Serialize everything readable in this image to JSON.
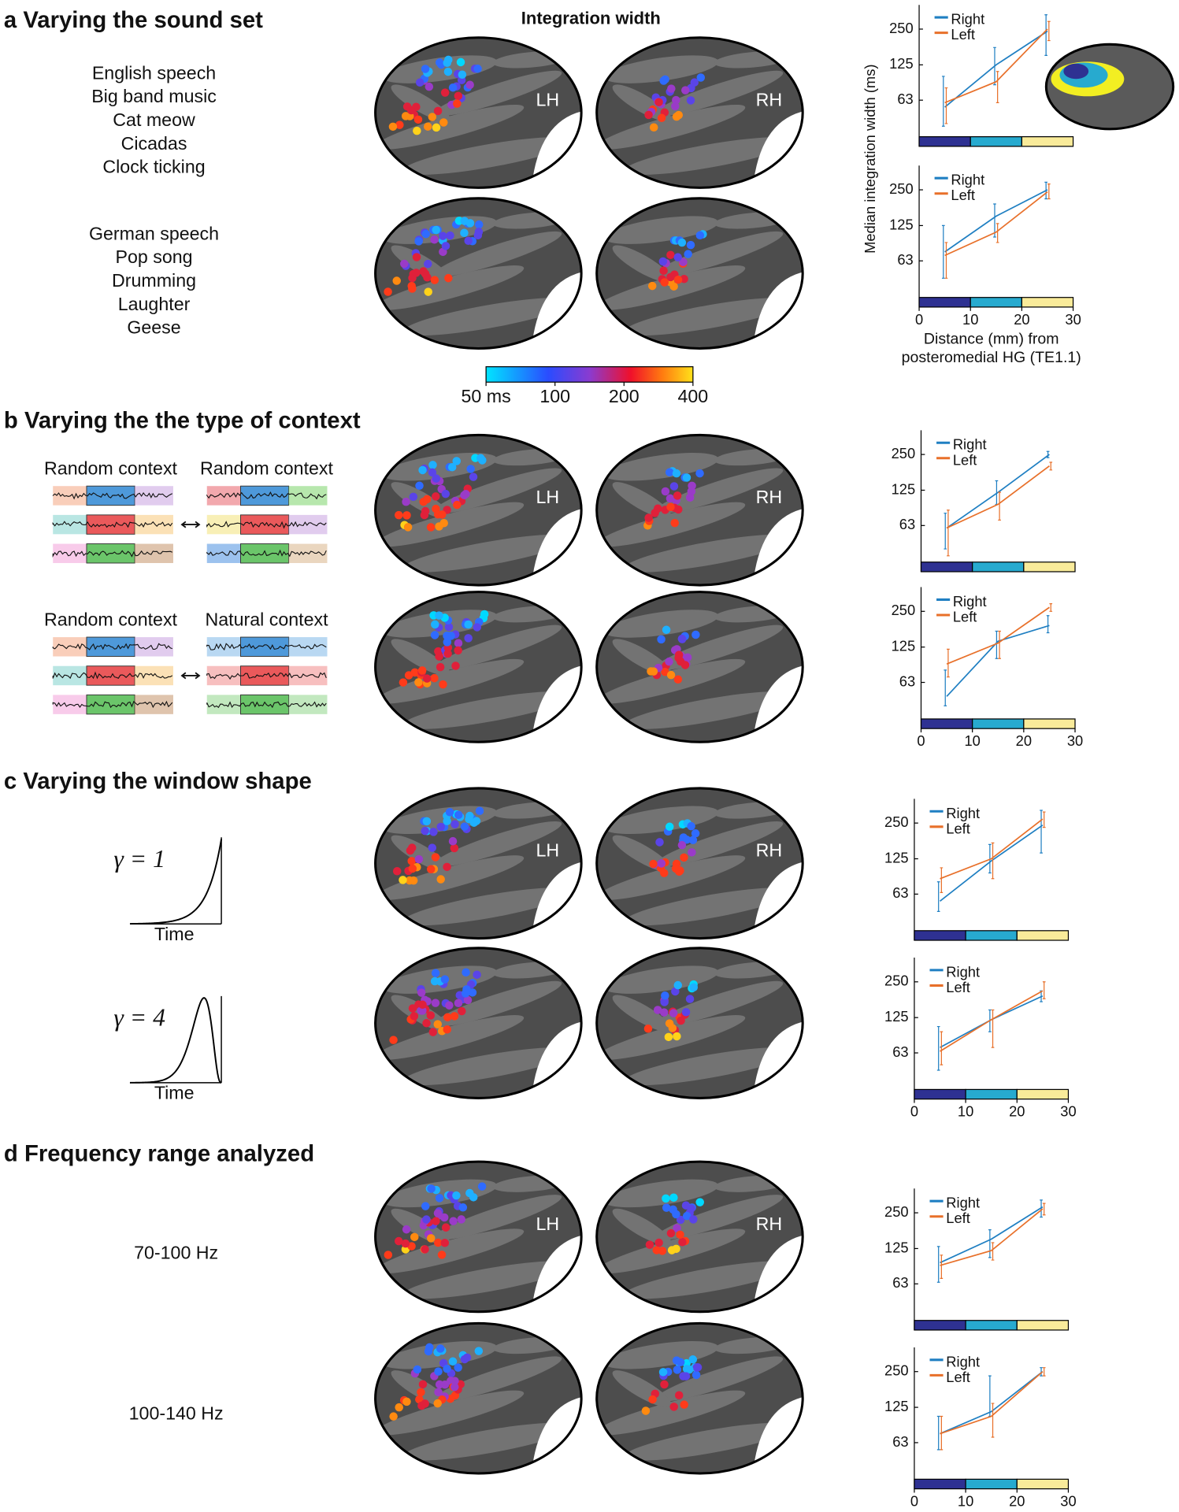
{
  "figure": {
    "column_title": "Integration width",
    "hemispheres": [
      "LH",
      "RH"
    ],
    "colorbar": {
      "lim": [
        50,
        400
      ],
      "ticks": [
        {
          "value": 50,
          "label": "50 ms"
        },
        100,
        200,
        400
      ]
    },
    "distance_bands": [
      {
        "from": 0,
        "to": 10,
        "color": "#2e3192"
      },
      {
        "from": 10,
        "to": 20,
        "color": "#27aacf"
      },
      {
        "from": 20,
        "to": 30,
        "color": "#f9eb9a"
      }
    ],
    "panels": [
      {
        "label": "a",
        "title": "Varying the sound set",
        "conditions": [
          {
            "lines": [
              "English speech",
              "Big band music",
              "Cat meow",
              "Cicadas",
              "Clock ticking"
            ]
          },
          {
            "lines": [
              "German speech",
              "Pop song",
              "Drumming",
              "Laughter",
              "Geese"
            ]
          }
        ]
      },
      {
        "label": "b",
        "title": "Varying the the type of context",
        "conditions": [
          {
            "contexts": [
              "Random context",
              "Random context"
            ]
          },
          {
            "contexts": [
              "Random context",
              "Natural context"
            ]
          }
        ]
      },
      {
        "label": "c",
        "title": "Varying the window shape",
        "conditions": [
          {
            "label": "γ = 1",
            "gamma": 1,
            "xlabel": "Time"
          },
          {
            "label": "γ = 4",
            "gamma": 4,
            "xlabel": "Time"
          }
        ]
      },
      {
        "label": "d",
        "title": "Frequency range analyzed",
        "conditions": [
          {
            "text": "70-100 Hz"
          },
          {
            "text": "100-140 Hz"
          }
        ]
      }
    ]
  },
  "chart_data": [
    {
      "type": "line",
      "ylabel": "Median integration width (ms)",
      "x": [
        5,
        15,
        25
      ],
      "xlim": [
        0,
        30
      ],
      "ylim": [
        31,
        400
      ],
      "yticks": [
        63,
        125,
        250
      ],
      "log_y": true,
      "legend": "upper left",
      "series": [
        {
          "name": "Right",
          "color": "#1f7fc2",
          "values": [
            55,
            125,
            240
          ],
          "lower": [
            38,
            85,
            150
          ],
          "upper": [
            100,
            175,
            330
          ]
        },
        {
          "name": "Left",
          "color": "#e8702a",
          "values": [
            60,
            90,
            250
          ],
          "lower": [
            40,
            60,
            200
          ],
          "upper": [
            80,
            110,
            290
          ]
        }
      ]
    },
    {
      "type": "line",
      "xlabel": [
        "Distance (mm) from",
        "posteromedial HG (TE1.1)"
      ],
      "x": [
        5,
        15,
        25
      ],
      "xlim": [
        0,
        30
      ],
      "xticks": [
        0,
        10,
        20,
        30
      ],
      "ylim": [
        31,
        400
      ],
      "yticks": [
        63,
        125,
        250
      ],
      "log_y": true,
      "legend": "upper left",
      "series": [
        {
          "name": "Right",
          "color": "#1f7fc2",
          "values": [
            75,
            150,
            250
          ],
          "lower": [
            45,
            100,
            210
          ],
          "upper": [
            125,
            190,
            290
          ]
        },
        {
          "name": "Left",
          "color": "#e8702a",
          "values": [
            70,
            110,
            240
          ],
          "lower": [
            45,
            90,
            210
          ],
          "upper": [
            90,
            130,
            280
          ]
        }
      ]
    },
    {
      "type": "line",
      "x": [
        5,
        15,
        25
      ],
      "xlim": [
        0,
        30
      ],
      "ylim": [
        31,
        400
      ],
      "yticks": [
        63,
        125,
        250
      ],
      "log_y": true,
      "legend": "upper left",
      "series": [
        {
          "name": "Right",
          "color": "#1f7fc2",
          "values": [
            60,
            120,
            250
          ],
          "lower": [
            40,
            95,
            235
          ],
          "upper": [
            80,
            150,
            265
          ]
        },
        {
          "name": "Left",
          "color": "#e8702a",
          "values": [
            60,
            95,
            200
          ],
          "lower": [
            35,
            70,
            185
          ],
          "upper": [
            85,
            120,
            215
          ]
        }
      ]
    },
    {
      "type": "line",
      "x": [
        5,
        15,
        25
      ],
      "xlim": [
        0,
        30
      ],
      "xticks": [
        0,
        10,
        20,
        30
      ],
      "ylim": [
        31,
        400
      ],
      "yticks": [
        63,
        125,
        250
      ],
      "log_y": true,
      "legend": "upper left",
      "series": [
        {
          "name": "Right",
          "color": "#1f7fc2",
          "values": [
            48,
            140,
            190
          ],
          "lower": [
            40,
            100,
            165
          ],
          "upper": [
            80,
            170,
            230
          ]
        },
        {
          "name": "Left",
          "color": "#e8702a",
          "values": [
            90,
            135,
            270
          ],
          "lower": [
            70,
            100,
            250
          ],
          "upper": [
            120,
            170,
            290
          ]
        }
      ]
    },
    {
      "type": "line",
      "x": [
        5,
        15,
        25
      ],
      "xlim": [
        0,
        30
      ],
      "ylim": [
        31,
        400
      ],
      "yticks": [
        63,
        125,
        250
      ],
      "log_y": true,
      "legend": "upper left",
      "series": [
        {
          "name": "Right",
          "color": "#1f7fc2",
          "values": [
            55,
            120,
            240
          ],
          "lower": [
            45,
            95,
            140
          ],
          "upper": [
            80,
            165,
            320
          ]
        },
        {
          "name": "Left",
          "color": "#e8702a",
          "values": [
            85,
            125,
            270
          ],
          "lower": [
            65,
            85,
            230
          ],
          "upper": [
            105,
            170,
            310
          ]
        }
      ]
    },
    {
      "type": "line",
      "x": [
        5,
        15,
        25
      ],
      "xlim": [
        0,
        30
      ],
      "xticks": [
        0,
        10,
        20,
        30
      ],
      "ylim": [
        31,
        400
      ],
      "yticks": [
        63,
        125,
        250
      ],
      "log_y": true,
      "legend": "upper left",
      "series": [
        {
          "name": "Right",
          "color": "#1f7fc2",
          "values": [
            70,
            120,
            190
          ],
          "lower": [
            45,
            95,
            170
          ],
          "upper": [
            105,
            145,
            210
          ]
        },
        {
          "name": "Left",
          "color": "#e8702a",
          "values": [
            65,
            120,
            210
          ],
          "lower": [
            50,
            70,
            180
          ],
          "upper": [
            95,
            145,
            250
          ]
        }
      ]
    },
    {
      "type": "line",
      "x": [
        5,
        15,
        25
      ],
      "xlim": [
        0,
        30
      ],
      "ylim": [
        31,
        400
      ],
      "yticks": [
        63,
        125,
        250
      ],
      "log_y": true,
      "legend": "upper left",
      "series": [
        {
          "name": "Right",
          "color": "#1f7fc2",
          "values": [
            95,
            150,
            280
          ],
          "lower": [
            65,
            105,
            230
          ],
          "upper": [
            130,
            180,
            320
          ]
        },
        {
          "name": "Left",
          "color": "#e8702a",
          "values": [
            90,
            120,
            270
          ],
          "lower": [
            70,
            100,
            240
          ],
          "upper": [
            110,
            140,
            300
          ]
        }
      ]
    },
    {
      "type": "line",
      "x": [
        5,
        15,
        25
      ],
      "xlim": [
        0,
        30
      ],
      "xticks": [
        0,
        10,
        20,
        30
      ],
      "ylim": [
        31,
        400
      ],
      "yticks": [
        63,
        125,
        250
      ],
      "log_y": true,
      "legend": "upper left",
      "series": [
        {
          "name": "Right",
          "color": "#1f7fc2",
          "values": [
            75,
            115,
            250
          ],
          "lower": [
            55,
            105,
            230
          ],
          "upper": [
            105,
            230,
            270
          ]
        },
        {
          "name": "Left",
          "color": "#e8702a",
          "values": [
            75,
            105,
            250
          ],
          "lower": [
            55,
            70,
            230
          ],
          "upper": [
            105,
            135,
            270
          ]
        }
      ]
    }
  ]
}
